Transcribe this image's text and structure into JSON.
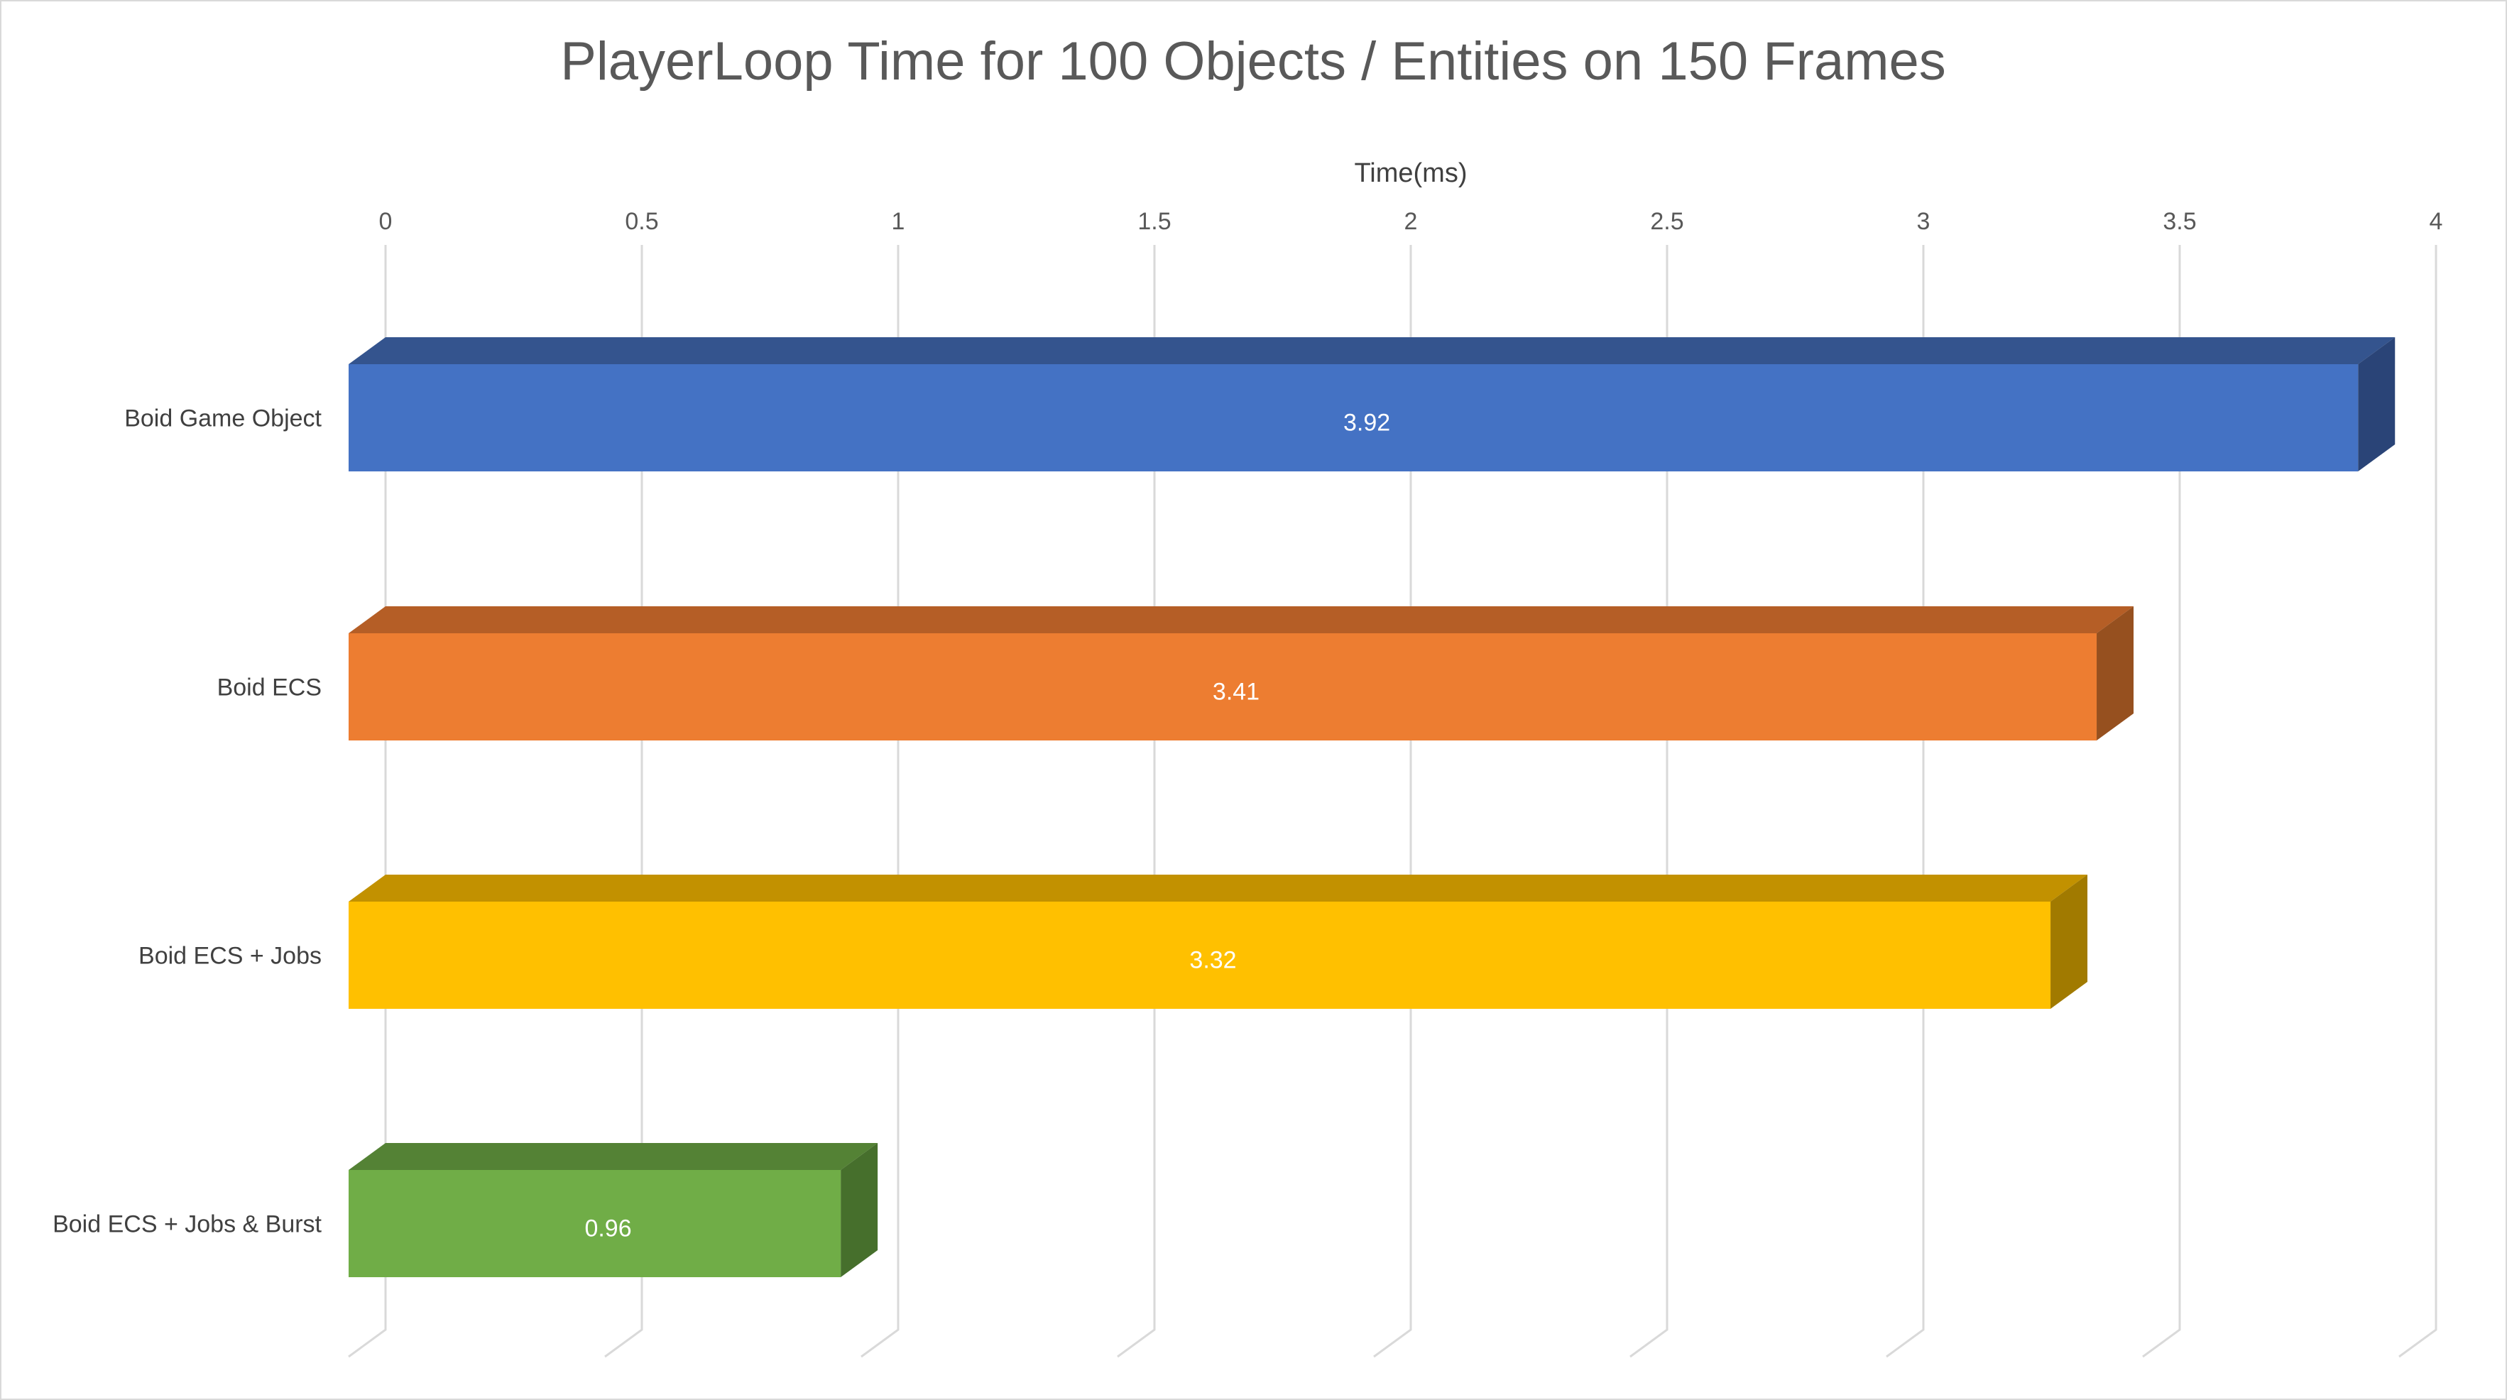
{
  "chart_data": {
    "type": "bar",
    "orientation": "horizontal",
    "style": "3d",
    "title": "PlayerLoop Time for 100 Objects / Entities on 150 Frames",
    "xlabel": "Time(ms)",
    "ylabel": "",
    "xlim": [
      0,
      4
    ],
    "x_axis_position": "top",
    "grid": true,
    "legend": "none",
    "ticks": [
      "0",
      "0.5",
      "1",
      "1.5",
      "2",
      "2.5",
      "3",
      "3.5",
      "4"
    ],
    "tick_values": [
      0,
      0.5,
      1,
      1.5,
      2,
      2.5,
      3,
      3.5,
      4
    ],
    "categories": [
      "Boid Game Object",
      "Boid ECS",
      "Boid ECS + Jobs",
      "Boid ECS + Jobs & Burst"
    ],
    "values": [
      3.92,
      3.41,
      3.32,
      0.96
    ],
    "value_labels": [
      "3.92",
      "3.41",
      "3.32",
      "0.96"
    ],
    "colors": {
      "front": [
        "#4472C4",
        "#ED7D31",
        "#FFC000",
        "#70AD47"
      ],
      "top": [
        "#34548E",
        "#B55E26",
        "#C29100",
        "#548235"
      ],
      "side": [
        "#2A4477",
        "#96501F",
        "#A17A00",
        "#466F2C"
      ]
    }
  }
}
